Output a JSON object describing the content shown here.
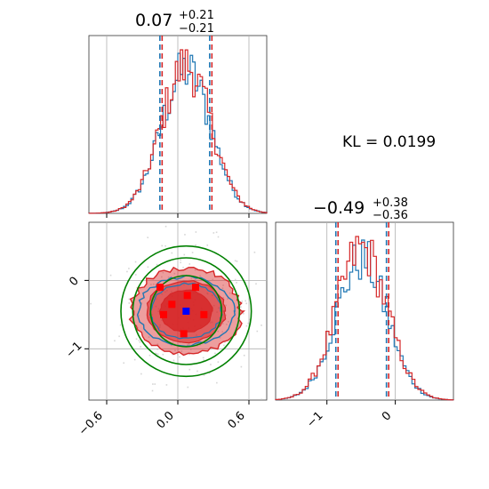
{
  "chart_data": {
    "type": "corner",
    "kl_label": "KL = 0.0199",
    "colors": {
      "series_a": "#1f77b4",
      "series_b": "#d62728",
      "fill": "#d62728",
      "circles": "#008000",
      "markers": "#ff0000",
      "center_marker": "#0000ff",
      "grid": "#b0b0b0"
    },
    "params": [
      {
        "title": {
          "value": "0.07",
          "plus": "+0.21",
          "minus": "−0.21"
        },
        "median": 0.07,
        "quantiles": [
          -0.14,
          0.28
        ],
        "xlim": [
          -0.75,
          0.75
        ],
        "ticks": [
          -0.6,
          0.0,
          0.6
        ],
        "tick_labels": [
          "−0.6",
          "0.0",
          "0.6"
        ]
      },
      {
        "title": {
          "value": "−0.49",
          "plus": "+0.38",
          "minus": "−0.36"
        },
        "median": -0.49,
        "quantiles": [
          -0.85,
          -0.11
        ],
        "xlim": [
          -1.75,
          0.85
        ],
        "ticks": [
          -1,
          0
        ],
        "tick_labels": [
          "−1",
          "0"
        ]
      }
    ],
    "joint": {
      "xlim": [
        -0.75,
        0.75
      ],
      "ylim": [
        -1.75,
        0.85
      ],
      "yticks": [
        0,
        -1
      ],
      "ytick_labels": [
        "0",
        "−1"
      ],
      "center": [
        0.07,
        -0.45
      ],
      "circle_radii": [
        0.55,
        0.45,
        0.3
      ],
      "marker_points": [
        [
          -0.15,
          -0.1
        ],
        [
          0.15,
          -0.1
        ],
        [
          0.08,
          -0.22
        ],
        [
          -0.05,
          -0.35
        ],
        [
          -0.12,
          -0.5
        ],
        [
          0.22,
          -0.5
        ],
        [
          0.05,
          -0.78
        ]
      ]
    }
  }
}
